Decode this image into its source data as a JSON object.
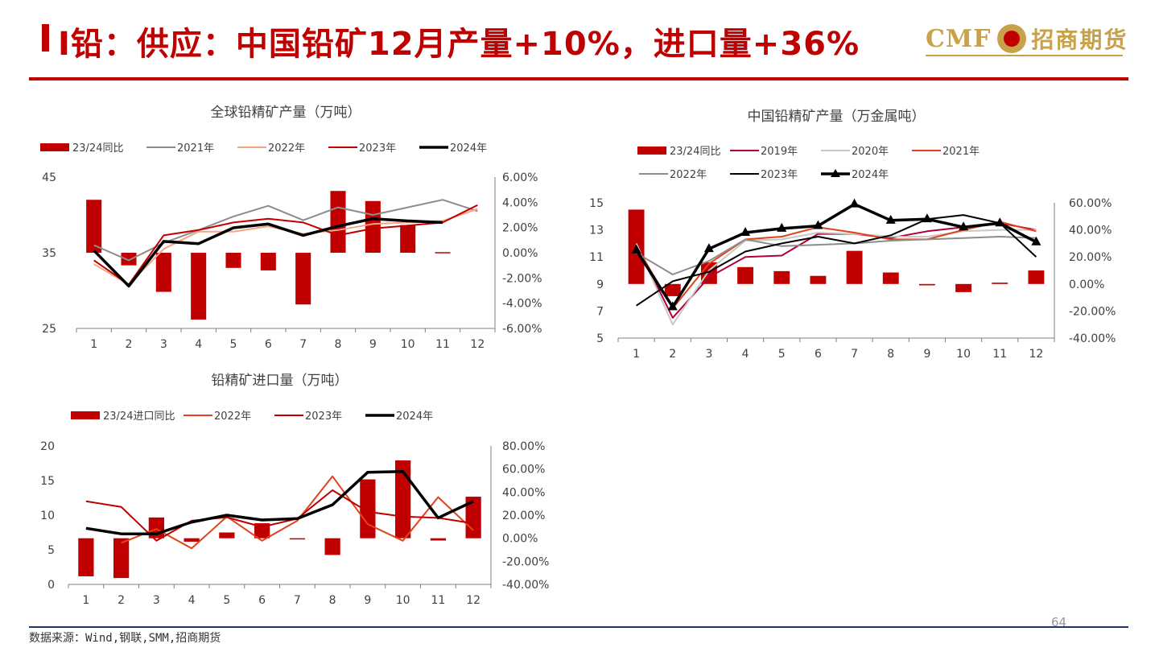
{
  "page": {
    "title": "Ⅰ铅：供应：中国铅矿12月产量+10%，进口量+36%",
    "logo_cmf": "CMF",
    "logo_text": "招商期货",
    "page_number": "64",
    "source": "数据来源：Wind,钢联,SMM,招商期货"
  },
  "colors": {
    "brand_red": "#c00000",
    "gold": "#c9a14a",
    "bar_red": "#c00000",
    "black": "#000000",
    "gray": "#8c8c8c",
    "light_gray": "#c8c8c8",
    "salmon": "#f4a582",
    "crimson": "#b2003c",
    "orange_red": "#e0431a"
  },
  "chart_data": [
    {
      "id": "global",
      "type": "bar+line",
      "title": "全球铅精矿产量（万吨）",
      "categories": [
        "1",
        "2",
        "3",
        "4",
        "5",
        "6",
        "7",
        "8",
        "9",
        "10",
        "11",
        "12"
      ],
      "ylim": [
        25,
        45
      ],
      "yticks": [
        "45",
        "35",
        "25"
      ],
      "y2lim": [
        -6,
        6
      ],
      "y2ticks": [
        "6.00%",
        "4.00%",
        "2.00%",
        "0.00%",
        "-2.00%",
        "-4.00%",
        "-6.00%"
      ],
      "bars": {
        "name": "23/24同比",
        "values": [
          4.2,
          -1.0,
          -3.1,
          -5.3,
          -1.2,
          -1.4,
          -4.1,
          4.9,
          4.1,
          2.2,
          0.05,
          null
        ]
      },
      "series": [
        {
          "name": "2021年",
          "color": "#8c8c8c",
          "width": 2,
          "marker": false,
          "values": [
            36.0,
            34.0,
            36.3,
            38.0,
            39.8,
            41.2,
            39.3,
            41.0,
            40.0,
            41.0,
            42.0,
            40.5
          ]
        },
        {
          "name": "2022年",
          "color": "#f4a582",
          "width": 2,
          "marker": false,
          "values": [
            33.5,
            30.8,
            35.5,
            37.8,
            37.8,
            38.5,
            37.5,
            38.0,
            38.8,
            39.0,
            39.2,
            40.8
          ]
        },
        {
          "name": "2023年",
          "color": "#c00000",
          "width": 2,
          "marker": false,
          "values": [
            34.0,
            30.8,
            37.3,
            38.0,
            39.0,
            39.5,
            39.0,
            37.3,
            38.2,
            38.6,
            39.0,
            41.3
          ]
        },
        {
          "name": "2024年",
          "color": "#000000",
          "width": 3.5,
          "marker": false,
          "values": [
            35.3,
            30.6,
            36.5,
            36.2,
            38.3,
            38.8,
            37.3,
            38.5,
            39.5,
            39.2,
            39.0,
            null
          ]
        }
      ]
    },
    {
      "id": "china",
      "type": "bar+line",
      "title": "中国铅精矿产量（万金属吨）",
      "categories": [
        "1",
        "2",
        "3",
        "4",
        "5",
        "6",
        "7",
        "8",
        "9",
        "10",
        "11",
        "12"
      ],
      "ylim": [
        5,
        15
      ],
      "yticks": [
        "15",
        "13",
        "11",
        "9",
        "7",
        "5"
      ],
      "y2lim": [
        -40,
        60
      ],
      "y2ticks": [
        "60.00%",
        "40.00%",
        "20.00%",
        "0.00%",
        "-20.00%",
        "-40.00%"
      ],
      "bars": {
        "name": "23/24同比",
        "values": [
          55.0,
          -9.0,
          16.0,
          12.5,
          9.5,
          6.0,
          24.5,
          8.5,
          -1.0,
          -6.0,
          1.0,
          10.0
        ]
      },
      "series": [
        {
          "name": "2019年",
          "color": "#b2003c",
          "width": 2,
          "marker": false,
          "values": [
            12.0,
            6.5,
            9.5,
            11.0,
            11.1,
            12.7,
            12.7,
            12.4,
            12.9,
            13.2,
            13.5,
            13.0
          ]
        },
        {
          "name": "2020年",
          "color": "#c8c8c8",
          "width": 2,
          "marker": false,
          "values": [
            12.0,
            6.0,
            10.0,
            12.2,
            12.3,
            12.8,
            12.7,
            12.5,
            12.5,
            12.9,
            13.0,
            13.0
          ]
        },
        {
          "name": "2021年",
          "color": "#e0431a",
          "width": 2,
          "marker": false,
          "values": [
            11.8,
            7.2,
            10.5,
            12.3,
            12.5,
            13.2,
            12.8,
            12.3,
            12.3,
            13.0,
            13.6,
            12.9
          ]
        },
        {
          "name": "2022年",
          "color": "#8c8c8c",
          "width": 2,
          "marker": false,
          "values": [
            11.3,
            9.7,
            10.7,
            12.3,
            11.8,
            11.9,
            12.0,
            12.2,
            12.3,
            12.4,
            12.5,
            12.4
          ]
        },
        {
          "name": "2023年",
          "color": "#000000",
          "width": 2,
          "marker": false,
          "values": [
            7.4,
            9.2,
            9.9,
            11.4,
            12.0,
            12.5,
            12.0,
            12.6,
            13.8,
            14.1,
            13.5,
            11.0
          ]
        },
        {
          "name": "2024年",
          "color": "#000000",
          "width": 3.5,
          "marker": true,
          "values": [
            11.5,
            7.3,
            11.6,
            12.8,
            13.1,
            13.3,
            14.9,
            13.7,
            13.8,
            13.2,
            13.5,
            12.1
          ]
        }
      ]
    },
    {
      "id": "import",
      "type": "bar+line",
      "title": "铅精矿进口量（万吨）",
      "categories": [
        "1",
        "2",
        "3",
        "4",
        "5",
        "6",
        "7",
        "8",
        "9",
        "10",
        "11",
        "12"
      ],
      "ylim": [
        0,
        20
      ],
      "yticks": [
        "20",
        "15",
        "10",
        "5",
        "0"
      ],
      "y2lim": [
        -40,
        80
      ],
      "y2ticks": [
        "80.00%",
        "60.00%",
        "40.00%",
        "20.00%",
        "0.00%",
        "-20.00%",
        "-40.00%"
      ],
      "bars": {
        "name": "23/24进口同比",
        "values": [
          -33.0,
          -34.5,
          18.0,
          -3.0,
          5.0,
          13.0,
          -1.0,
          -14.5,
          51.0,
          67.5,
          -2.0,
          36.0
        ]
      },
      "series": [
        {
          "name": "2022年",
          "color": "#e0431a",
          "width": 2,
          "marker": false,
          "values": [
            null,
            6.0,
            8.0,
            5.2,
            9.8,
            6.3,
            9.2,
            15.6,
            8.7,
            6.3,
            12.6,
            7.8
          ]
        },
        {
          "name": "2023年",
          "color": "#c00000",
          "width": 2,
          "marker": false,
          "values": [
            12.0,
            11.2,
            6.3,
            9.2,
            9.7,
            8.3,
            9.5,
            13.6,
            10.5,
            9.8,
            9.6,
            8.8
          ]
        },
        {
          "name": "2024年",
          "color": "#000000",
          "width": 3.5,
          "marker": false,
          "values": [
            8.1,
            7.3,
            7.3,
            9.0,
            10.0,
            9.3,
            9.5,
            11.5,
            16.2,
            16.3,
            9.6,
            12.0
          ]
        }
      ]
    }
  ]
}
